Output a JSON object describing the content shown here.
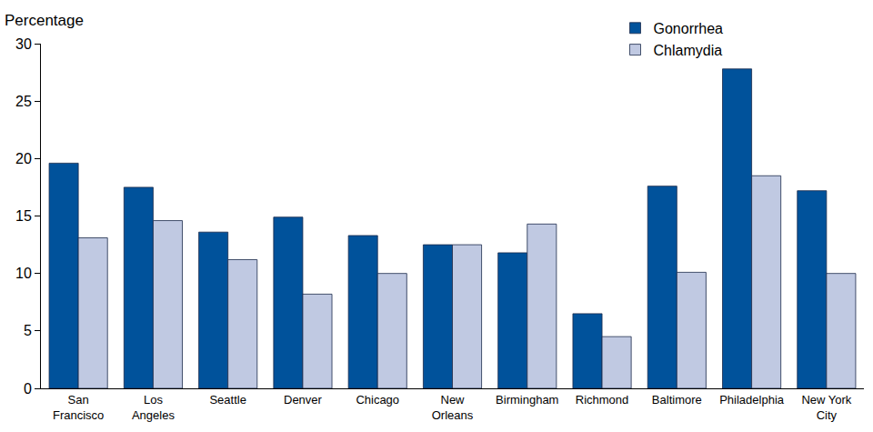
{
  "chart_data": {
    "type": "bar",
    "ylabel": "Percentage",
    "categories": [
      "San Francisco",
      "Los Angeles",
      "Seattle",
      "Denver",
      "Chicago",
      "New Orleans",
      "Birmingham",
      "Richmond",
      "Baltimore",
      "Philadelphia",
      "New York City"
    ],
    "series": [
      {
        "name": "Gonorrhea",
        "color": "#00529b",
        "values": [
          19.6,
          17.5,
          13.6,
          14.9,
          13.3,
          12.5,
          11.8,
          6.5,
          17.6,
          27.8,
          17.2
        ]
      },
      {
        "name": "Chlamydia",
        "color": "#c0c9e2",
        "values": [
          13.1,
          14.6,
          11.2,
          8.2,
          10.0,
          12.5,
          14.3,
          4.5,
          10.1,
          18.5,
          10.0
        ]
      }
    ],
    "ylim": [
      0,
      30
    ],
    "yticks": [
      0,
      5,
      10,
      15,
      20,
      25,
      30
    ],
    "grid": false,
    "legend": "upper right"
  }
}
